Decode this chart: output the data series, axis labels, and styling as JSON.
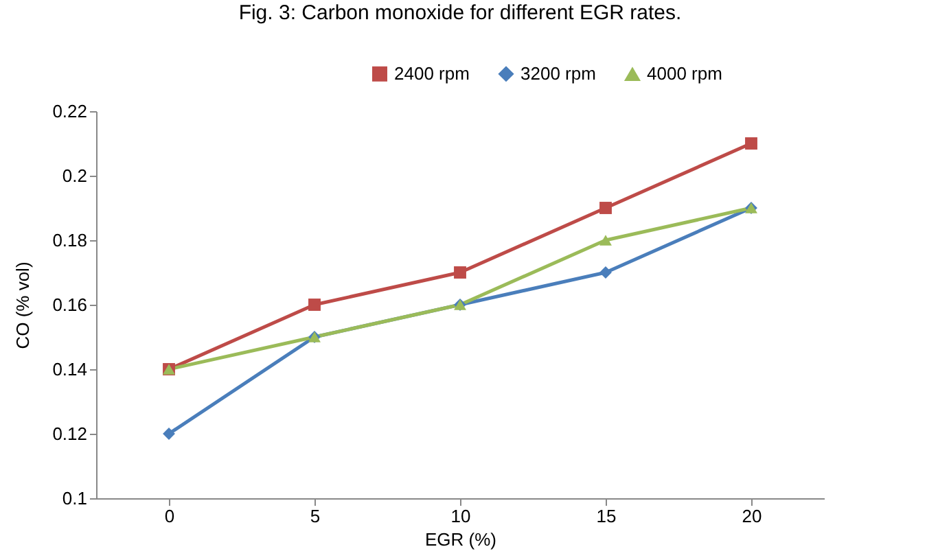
{
  "chart_data": {
    "type": "line",
    "title": "Fig. 3: Carbon monoxide for different EGR rates.",
    "xlabel": "EGR (%)",
    "ylabel": "CO (% vol)",
    "categories": [
      "0",
      "5",
      "10",
      "15",
      "20"
    ],
    "series": [
      {
        "name": "2400 rpm",
        "color": "#be4b48",
        "marker": "square",
        "values": [
          0.14,
          0.16,
          0.17,
          0.19,
          0.21
        ]
      },
      {
        "name": "3200 rpm",
        "color": "#4a7ebb",
        "marker": "diamond",
        "values": [
          0.12,
          0.15,
          0.16,
          0.17,
          0.19
        ]
      },
      {
        "name": "4000 rpm",
        "color": "#9bbb59",
        "marker": "triangle",
        "values": [
          0.14,
          0.15,
          0.16,
          0.18,
          0.19
        ]
      }
    ],
    "ylim": [
      0.1,
      0.22
    ],
    "yticks": [
      0.1,
      0.12,
      0.14,
      0.16,
      0.18,
      0.2,
      0.22
    ],
    "grid": false,
    "legend": "top right",
    "line_style": "solid"
  }
}
